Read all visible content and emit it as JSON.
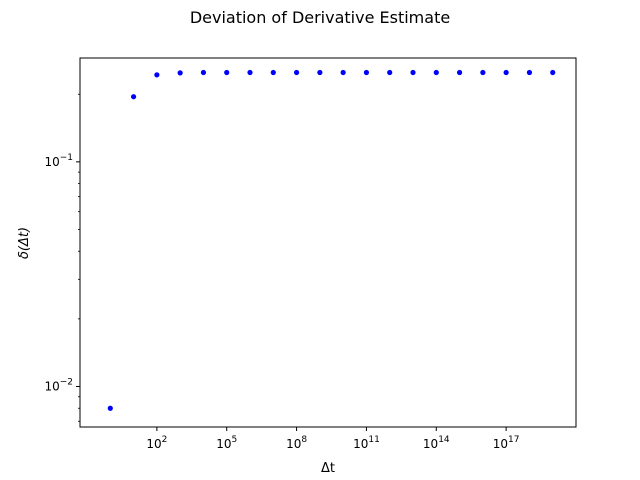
{
  "chart_data": {
    "type": "scatter",
    "title": "Deviation of Derivative Estimate",
    "xlabel": "Δt",
    "ylabel": "δ(Δt)",
    "xscale": "log",
    "yscale": "log",
    "xlim": [
      0.05,
      1e+20
    ],
    "ylim": [
      0.0066,
      0.29
    ],
    "marker_color": "#0000ff",
    "x_ticks": [
      {
        "base": "10",
        "exp": "2",
        "value": 100
      },
      {
        "base": "10",
        "exp": "5",
        "value": 100000
      },
      {
        "base": "10",
        "exp": "8",
        "value": 100000000
      },
      {
        "base": "10",
        "exp": "11",
        "value": 100000000000
      },
      {
        "base": "10",
        "exp": "14",
        "value": 100000000000000
      },
      {
        "base": "10",
        "exp": "17",
        "value": 100000000000000000
      }
    ],
    "y_ticks": [
      {
        "base": "10",
        "exp": "−2",
        "value": 0.01
      },
      {
        "base": "10",
        "exp": "−1",
        "value": 0.1
      }
    ],
    "points": [
      {
        "x": 1,
        "y": 0.008
      },
      {
        "x": 10,
        "y": 0.195
      },
      {
        "x": 100,
        "y": 0.244
      },
      {
        "x": 1000,
        "y": 0.249
      },
      {
        "x": 10000,
        "y": 0.2499
      },
      {
        "x": 100000,
        "y": 0.25
      },
      {
        "x": 1000000,
        "y": 0.25
      },
      {
        "x": 10000000,
        "y": 0.25
      },
      {
        "x": 100000000,
        "y": 0.25
      },
      {
        "x": 1000000000,
        "y": 0.25
      },
      {
        "x": 10000000000,
        "y": 0.25
      },
      {
        "x": 100000000000,
        "y": 0.25
      },
      {
        "x": 1000000000000,
        "y": 0.25
      },
      {
        "x": 10000000000000,
        "y": 0.25
      },
      {
        "x": 100000000000000,
        "y": 0.25
      },
      {
        "x": 1000000000000000,
        "y": 0.25
      },
      {
        "x": 10000000000000000,
        "y": 0.25
      },
      {
        "x": 100000000000000000,
        "y": 0.25
      },
      {
        "x": 1000000000000000000,
        "y": 0.25
      },
      {
        "x": 10000000000000000000,
        "y": 0.25
      }
    ]
  }
}
